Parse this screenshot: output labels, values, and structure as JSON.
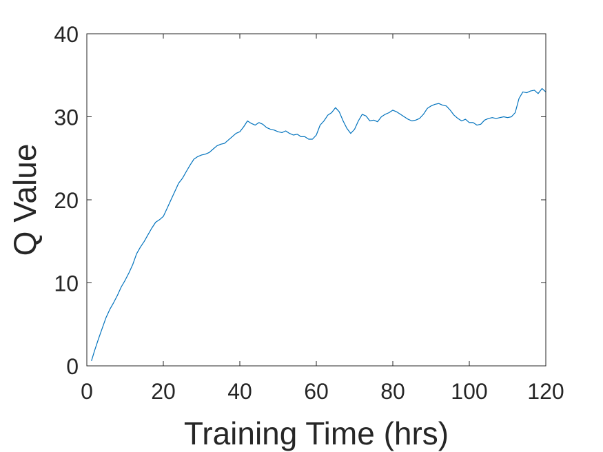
{
  "chart_data": {
    "type": "line",
    "title": "",
    "xlabel": "Training Time (hrs)",
    "ylabel": "Q Value",
    "xlim": [
      0,
      120
    ],
    "ylim": [
      0,
      40
    ],
    "xticks": [
      "0",
      "20",
      "40",
      "60",
      "80",
      "100",
      "120"
    ],
    "yticks": [
      "0",
      "10",
      "20",
      "30",
      "40"
    ],
    "grid": false,
    "legend": "none",
    "series": [
      {
        "color": "#0072BD",
        "points": [
          [
            1.2,
            0.6
          ],
          [
            2,
            1.8
          ],
          [
            3,
            3.2
          ],
          [
            4,
            4.5
          ],
          [
            5,
            5.8
          ],
          [
            6,
            6.8
          ],
          [
            7,
            7.6
          ],
          [
            8,
            8.5
          ],
          [
            9,
            9.5
          ],
          [
            10,
            10.3
          ],
          [
            11,
            11.2
          ],
          [
            12,
            12.2
          ],
          [
            13,
            13.5
          ],
          [
            14,
            14.3
          ],
          [
            15,
            15.0
          ],
          [
            16,
            15.8
          ],
          [
            17,
            16.6
          ],
          [
            18,
            17.3
          ],
          [
            19,
            17.6
          ],
          [
            20,
            18.0
          ],
          [
            21,
            19.0
          ],
          [
            22,
            20.0
          ],
          [
            23,
            21.0
          ],
          [
            24,
            22.0
          ],
          [
            25,
            22.6
          ],
          [
            26,
            23.4
          ],
          [
            27,
            24.2
          ],
          [
            28,
            24.9
          ],
          [
            29,
            25.2
          ],
          [
            30,
            25.4
          ],
          [
            31,
            25.5
          ],
          [
            32,
            25.7
          ],
          [
            33,
            26.1
          ],
          [
            34,
            26.5
          ],
          [
            35,
            26.7
          ],
          [
            36,
            26.8
          ],
          [
            37,
            27.2
          ],
          [
            38,
            27.6
          ],
          [
            39,
            28.0
          ],
          [
            40,
            28.2
          ],
          [
            41,
            28.8
          ],
          [
            42,
            29.5
          ],
          [
            43,
            29.2
          ],
          [
            44,
            29.0
          ],
          [
            45,
            29.3
          ],
          [
            46,
            29.1
          ],
          [
            47,
            28.7
          ],
          [
            48,
            28.5
          ],
          [
            49,
            28.4
          ],
          [
            50,
            28.2
          ],
          [
            51,
            28.1
          ],
          [
            52,
            28.3
          ],
          [
            53,
            28.0
          ],
          [
            54,
            27.8
          ],
          [
            55,
            27.9
          ],
          [
            56,
            27.6
          ],
          [
            57,
            27.6
          ],
          [
            58,
            27.3
          ],
          [
            59,
            27.3
          ],
          [
            60,
            27.8
          ],
          [
            61,
            29.0
          ],
          [
            62,
            29.5
          ],
          [
            63,
            30.2
          ],
          [
            64,
            30.5
          ],
          [
            65,
            31.1
          ],
          [
            66,
            30.6
          ],
          [
            67,
            29.5
          ],
          [
            68,
            28.6
          ],
          [
            69,
            28.0
          ],
          [
            70,
            28.5
          ],
          [
            71,
            29.5
          ],
          [
            72,
            30.3
          ],
          [
            73,
            30.1
          ],
          [
            74,
            29.5
          ],
          [
            75,
            29.6
          ],
          [
            76,
            29.4
          ],
          [
            77,
            30.0
          ],
          [
            78,
            30.3
          ],
          [
            79,
            30.5
          ],
          [
            80,
            30.8
          ],
          [
            81,
            30.6
          ],
          [
            82,
            30.3
          ],
          [
            83,
            30.0
          ],
          [
            84,
            29.7
          ],
          [
            85,
            29.5
          ],
          [
            86,
            29.6
          ],
          [
            87,
            29.8
          ],
          [
            88,
            30.3
          ],
          [
            89,
            31.0
          ],
          [
            90,
            31.3
          ],
          [
            91,
            31.5
          ],
          [
            92,
            31.6
          ],
          [
            93,
            31.4
          ],
          [
            94,
            31.3
          ],
          [
            95,
            30.8
          ],
          [
            96,
            30.2
          ],
          [
            97,
            29.8
          ],
          [
            98,
            29.5
          ],
          [
            99,
            29.7
          ],
          [
            100,
            29.3
          ],
          [
            101,
            29.3
          ],
          [
            102,
            29.0
          ],
          [
            103,
            29.1
          ],
          [
            104,
            29.6
          ],
          [
            105,
            29.8
          ],
          [
            106,
            29.9
          ],
          [
            107,
            29.8
          ],
          [
            108,
            29.9
          ],
          [
            109,
            30.0
          ],
          [
            110,
            29.9
          ],
          [
            111,
            30.0
          ],
          [
            112,
            30.5
          ],
          [
            113,
            32.2
          ],
          [
            114,
            33.0
          ],
          [
            115,
            32.9
          ],
          [
            116,
            33.1
          ],
          [
            117,
            33.2
          ],
          [
            118,
            32.8
          ],
          [
            119,
            33.4
          ],
          [
            120,
            33.0
          ]
        ]
      }
    ]
  }
}
